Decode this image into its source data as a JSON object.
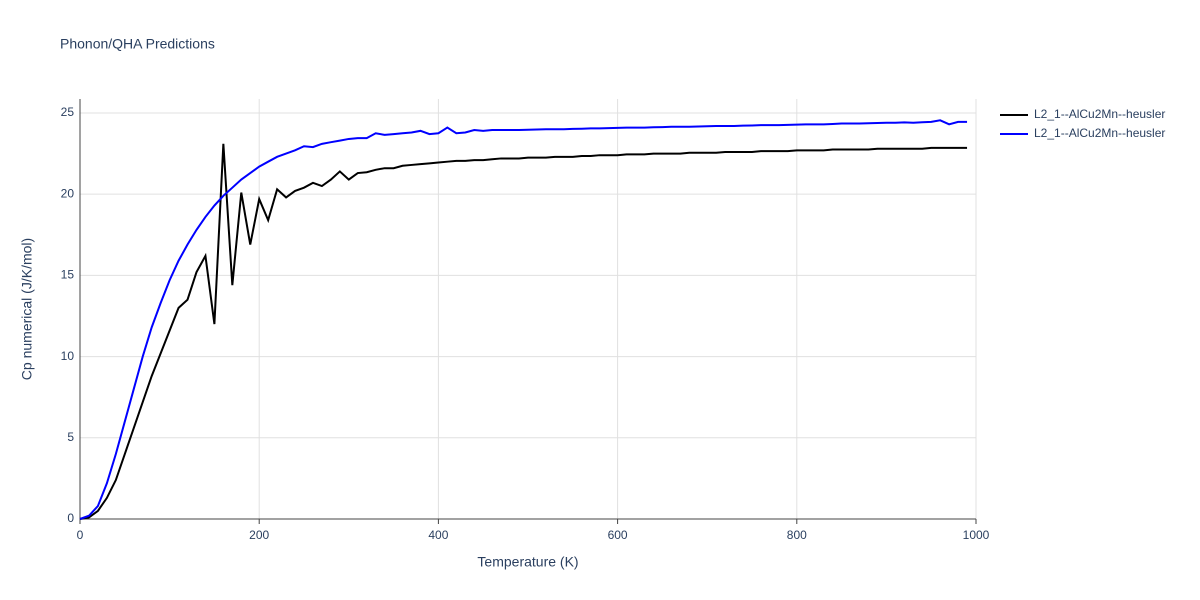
{
  "chart_data": {
    "type": "line",
    "title": "Phonon/QHA Predictions",
    "x_label": "Temperature (K)",
    "y_label": "Cp numerical (J/K/mol)",
    "x": [
      0,
      10,
      20,
      30,
      40,
      50,
      60,
      70,
      80,
      90,
      100,
      110,
      120,
      130,
      140,
      150,
      160,
      170,
      180,
      190,
      200,
      210,
      220,
      230,
      240,
      250,
      260,
      270,
      280,
      290,
      300,
      310,
      320,
      330,
      340,
      350,
      360,
      370,
      380,
      390,
      400,
      410,
      420,
      430,
      440,
      450,
      460,
      470,
      480,
      490,
      500,
      510,
      520,
      530,
      540,
      550,
      560,
      570,
      580,
      590,
      600,
      610,
      620,
      630,
      640,
      650,
      660,
      670,
      680,
      690,
      700,
      710,
      720,
      730,
      740,
      750,
      760,
      770,
      780,
      790,
      800,
      810,
      820,
      830,
      840,
      850,
      860,
      870,
      880,
      890,
      900,
      910,
      920,
      930,
      940,
      950,
      960,
      970,
      980,
      990
    ],
    "series": [
      {
        "name": "L2_1--AlCu2Mn--heusler",
        "color": "#000000",
        "values": [
          0,
          0.1,
          0.5,
          1.3,
          2.4,
          4.0,
          5.6,
          7.2,
          8.8,
          10.2,
          11.6,
          13.0,
          13.5,
          15.2,
          16.2,
          12.0,
          23.1,
          14.4,
          20.1,
          16.9,
          19.7,
          18.4,
          20.3,
          19.8,
          20.2,
          20.4,
          20.7,
          20.5,
          20.9,
          21.4,
          20.9,
          21.3,
          21.35,
          21.5,
          21.6,
          21.6,
          21.75,
          21.8,
          21.85,
          21.9,
          21.95,
          22.0,
          22.05,
          22.05,
          22.1,
          22.1,
          22.15,
          22.2,
          22.2,
          22.2,
          22.25,
          22.25,
          22.25,
          22.3,
          22.3,
          22.3,
          22.35,
          22.35,
          22.4,
          22.4,
          22.4,
          22.45,
          22.45,
          22.45,
          22.5,
          22.5,
          22.5,
          22.5,
          22.55,
          22.55,
          22.55,
          22.55,
          22.6,
          22.6,
          22.6,
          22.6,
          22.65,
          22.65,
          22.65,
          22.65,
          22.7,
          22.7,
          22.7,
          22.7,
          22.75,
          22.75,
          22.75,
          22.75,
          22.75,
          22.8,
          22.8,
          22.8,
          22.8,
          22.8,
          22.8,
          22.85,
          22.85,
          22.85,
          22.85,
          22.85
        ]
      },
      {
        "name": "L2_1--AlCu2Mn--heusler",
        "color": "#0000ff",
        "values": [
          0,
          0.2,
          0.8,
          2.2,
          4.0,
          6.0,
          8.0,
          10.0,
          11.8,
          13.3,
          14.7,
          15.9,
          16.9,
          17.8,
          18.6,
          19.3,
          19.9,
          20.4,
          20.9,
          21.3,
          21.7,
          22.0,
          22.3,
          22.5,
          22.7,
          22.95,
          22.9,
          23.1,
          23.2,
          23.3,
          23.4,
          23.45,
          23.45,
          23.75,
          23.65,
          23.7,
          23.75,
          23.8,
          23.9,
          23.7,
          23.75,
          24.1,
          23.75,
          23.8,
          23.95,
          23.9,
          23.95,
          23.95,
          23.95,
          23.95,
          23.97,
          23.98,
          24.0,
          24.0,
          24.0,
          24.02,
          24.03,
          24.05,
          24.05,
          24.07,
          24.08,
          24.1,
          24.1,
          24.1,
          24.12,
          24.13,
          24.15,
          24.15,
          24.15,
          24.17,
          24.18,
          24.2,
          24.2,
          24.2,
          24.22,
          24.23,
          24.25,
          24.25,
          24.25,
          24.27,
          24.28,
          24.3,
          24.3,
          24.3,
          24.32,
          24.35,
          24.35,
          24.35,
          24.37,
          24.38,
          24.4,
          24.4,
          24.42,
          24.4,
          24.43,
          24.45,
          24.55,
          24.3,
          24.45,
          24.45
        ]
      }
    ],
    "xlim": [
      0,
      1000
    ],
    "xticks": [
      0,
      200,
      400,
      600,
      800,
      1000
    ],
    "ylim": [
      0,
      25.86
    ],
    "yticks": [
      0,
      5,
      10,
      15,
      20,
      25
    ],
    "grid": true,
    "legend": "right"
  }
}
